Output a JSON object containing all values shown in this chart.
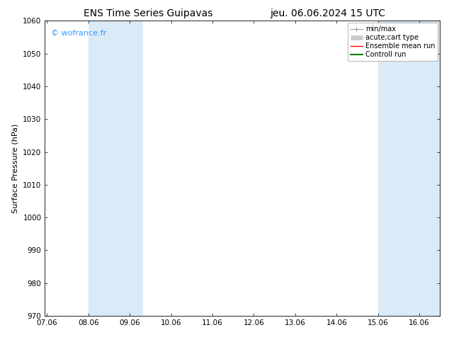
{
  "title_left": "ENS Time Series Guipavas",
  "title_right": "jeu. 06.06.2024 15 UTC",
  "ylabel": "Surface Pressure (hPa)",
  "ylim": [
    970,
    1060
  ],
  "yticks": [
    970,
    980,
    990,
    1000,
    1010,
    1020,
    1030,
    1040,
    1050,
    1060
  ],
  "xtick_labels": [
    "07.06",
    "08.06",
    "09.06",
    "10.06",
    "11.06",
    "12.06",
    "13.06",
    "14.06",
    "15.06",
    "16.06"
  ],
  "xtick_positions": [
    0,
    1,
    2,
    3,
    4,
    5,
    6,
    7,
    8,
    9
  ],
  "xlim": [
    -0.05,
    9.5
  ],
  "background_color": "#ffffff",
  "plot_bg_color": "#ffffff",
  "watermark": "© wofrance.fr",
  "watermark_color": "#3399ff",
  "shaded_bands": [
    {
      "xstart": 0.5,
      "xend": 1.5,
      "color": "#ddeeff"
    },
    {
      "xstart": 1.5,
      "xend": 2.0,
      "color": "#ddeeff"
    },
    {
      "xstart": 7.5,
      "xend": 8.0,
      "color": "#ddeeff"
    },
    {
      "xstart": 8.0,
      "xend": 8.5,
      "color": "#ddeeff"
    },
    {
      "xstart": 9.0,
      "xend": 9.5,
      "color": "#ddeeff"
    }
  ],
  "legend_entries": [
    {
      "label": "min/max",
      "color": "#aaaaaa",
      "lw": 1.0
    },
    {
      "label": "acute;cart type",
      "color": "#bbbbbb",
      "lw": 4.0
    },
    {
      "label": "Ensemble mean run",
      "color": "#ff0000",
      "lw": 1.0
    },
    {
      "label": "Controll run",
      "color": "#008000",
      "lw": 1.5
    }
  ],
  "title_fontsize": 10,
  "axis_label_fontsize": 8,
  "tick_fontsize": 7.5,
  "legend_fontsize": 7,
  "watermark_fontsize": 8
}
